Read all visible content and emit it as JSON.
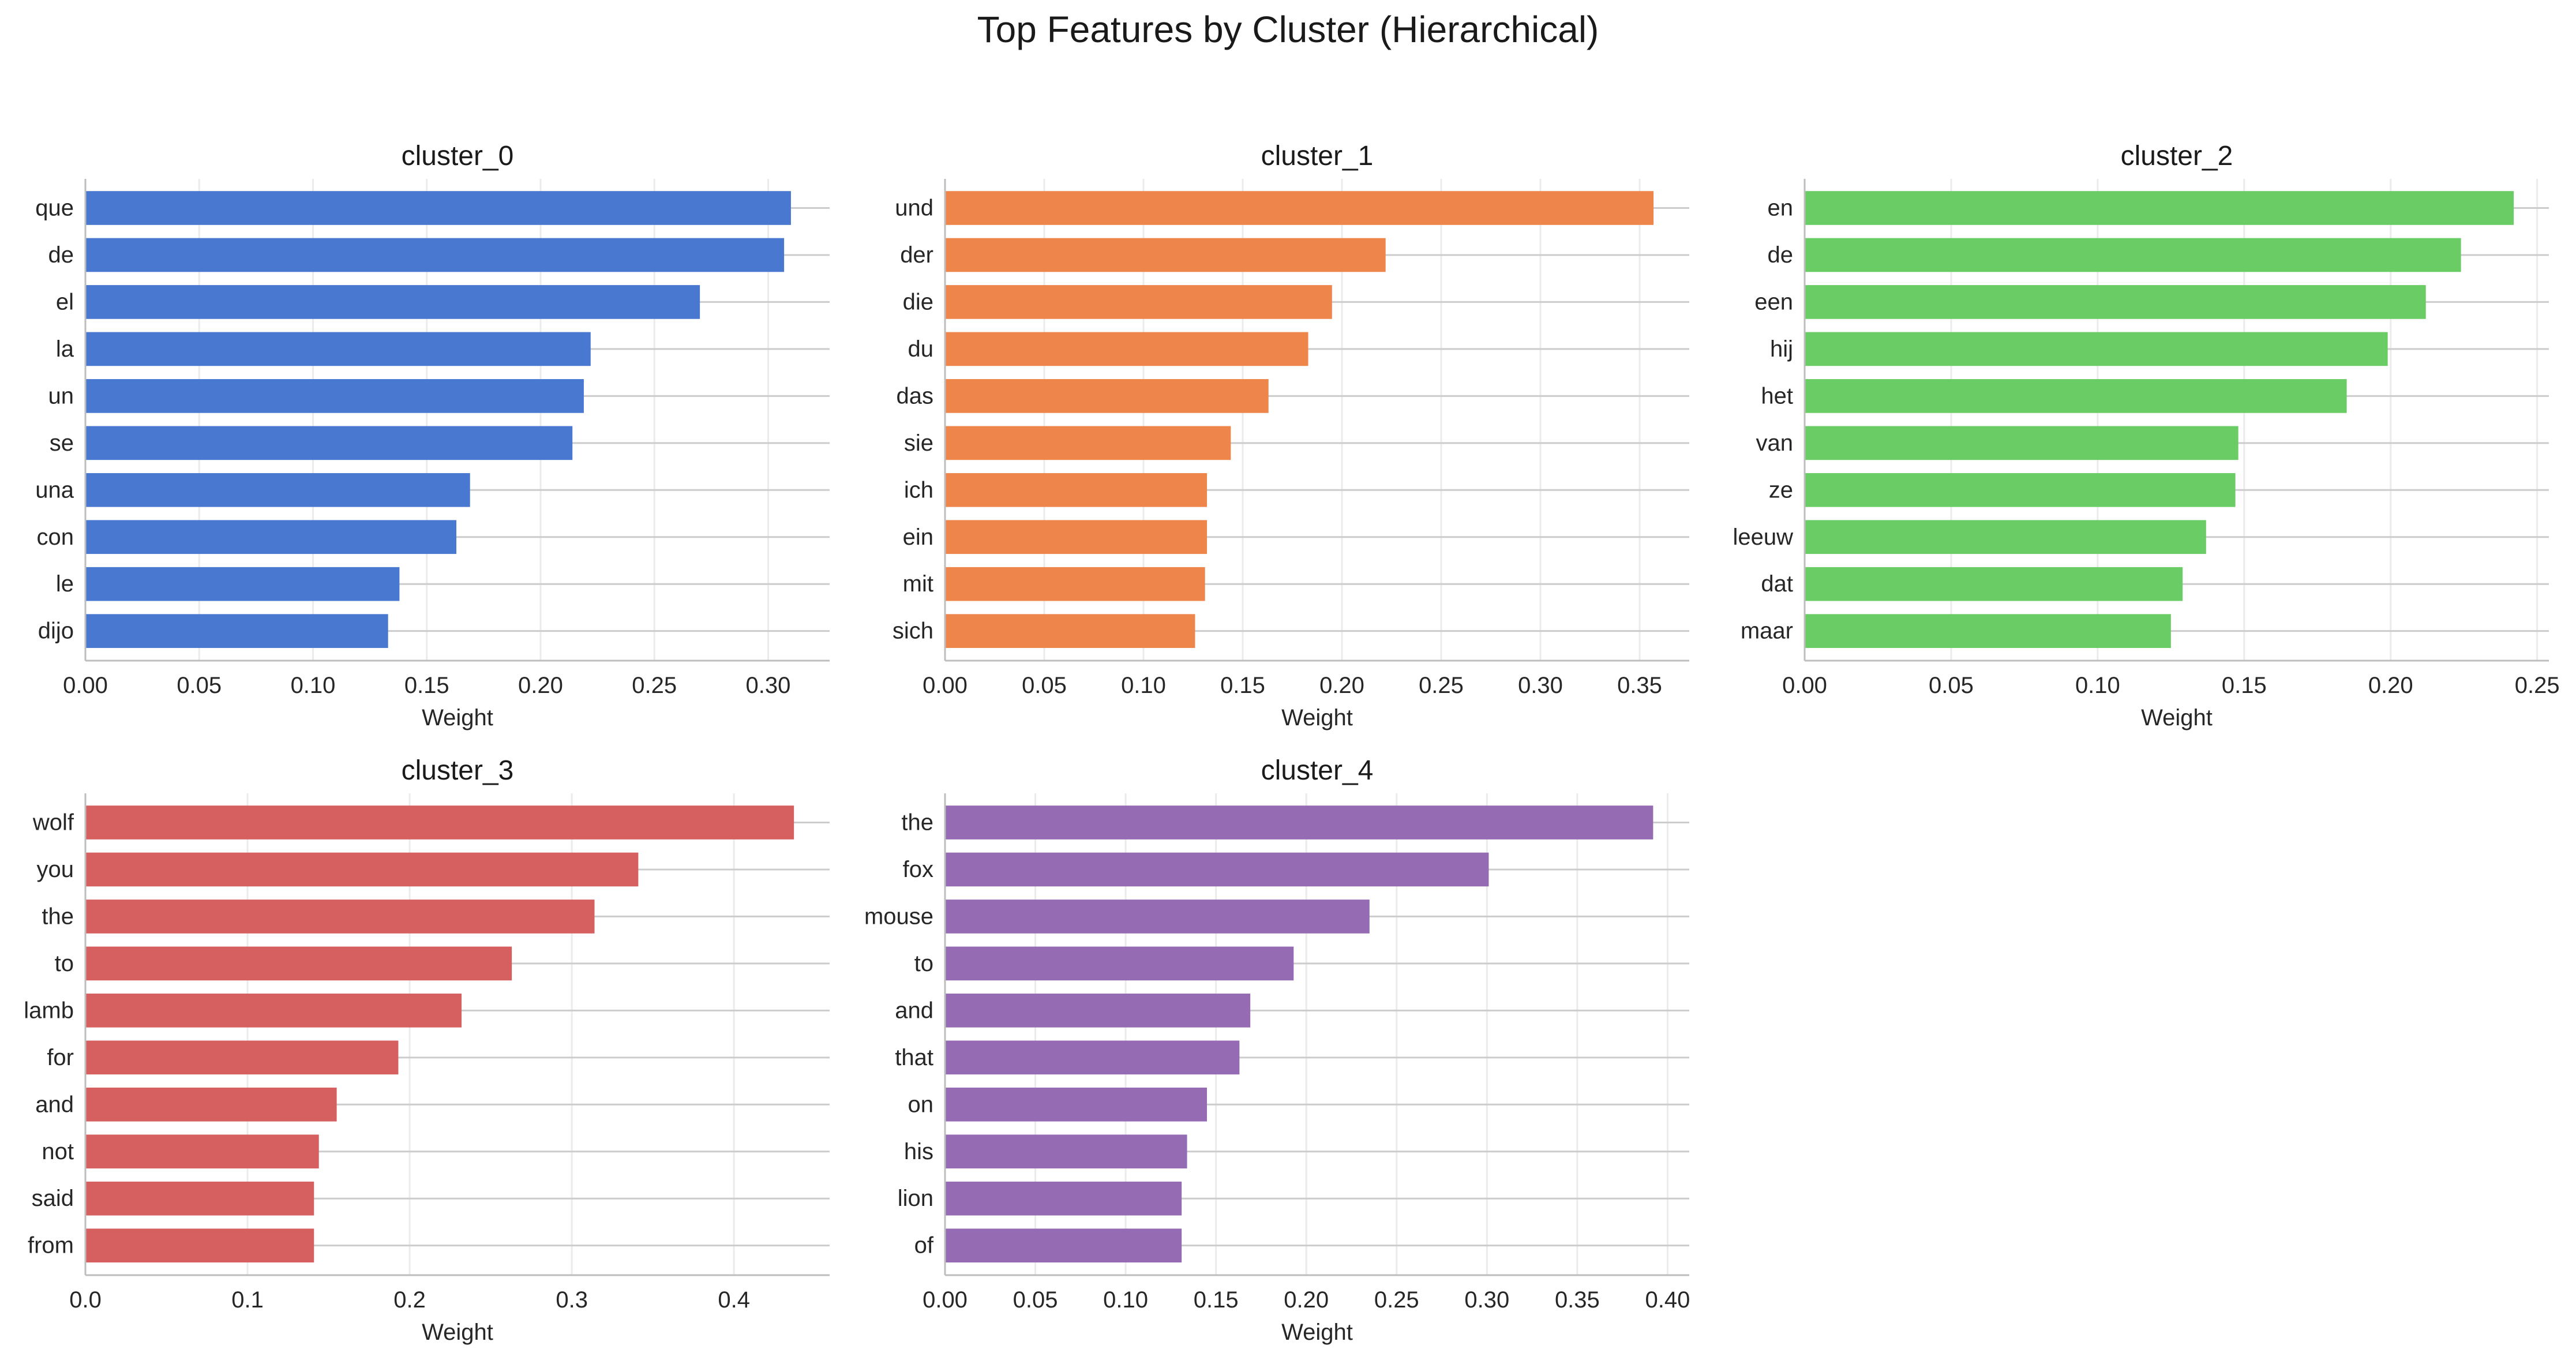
{
  "figure": {
    "title": "Top Features by Cluster (Hierarchical)"
  },
  "chart_data": [
    {
      "type": "bar",
      "orientation": "horizontal",
      "title": "cluster_0",
      "xlabel": "Weight",
      "ylabel": "",
      "color": "#4878d0",
      "categories": [
        "que",
        "de",
        "el",
        "la",
        "un",
        "se",
        "una",
        "con",
        "le",
        "dijo"
      ],
      "values": [
        0.31,
        0.307,
        0.27,
        0.222,
        0.219,
        0.214,
        0.169,
        0.163,
        0.138,
        0.133
      ],
      "xlim": [
        0,
        0.327
      ],
      "xticks": [
        0.0,
        0.05,
        0.1,
        0.15,
        0.2,
        0.25,
        0.3
      ],
      "xtick_labels": [
        "0.00",
        "0.05",
        "0.10",
        "0.15",
        "0.20",
        "0.25",
        "0.30"
      ]
    },
    {
      "type": "bar",
      "orientation": "horizontal",
      "title": "cluster_1",
      "xlabel": "Weight",
      "ylabel": "",
      "color": "#ee854a",
      "categories": [
        "und",
        "der",
        "die",
        "du",
        "das",
        "sie",
        "ich",
        "ein",
        "mit",
        "sich"
      ],
      "values": [
        0.357,
        0.222,
        0.195,
        0.183,
        0.163,
        0.144,
        0.132,
        0.132,
        0.131,
        0.126
      ],
      "xlim": [
        0,
        0.375
      ],
      "xticks": [
        0.0,
        0.05,
        0.1,
        0.15,
        0.2,
        0.25,
        0.3,
        0.35
      ],
      "xtick_labels": [
        "0.00",
        "0.05",
        "0.10",
        "0.15",
        "0.20",
        "0.25",
        "0.30",
        "0.35"
      ]
    },
    {
      "type": "bar",
      "orientation": "horizontal",
      "title": "cluster_2",
      "xlabel": "Weight",
      "ylabel": "",
      "color": "#6acc64",
      "categories": [
        "en",
        "de",
        "een",
        "hij",
        "het",
        "van",
        "ze",
        "leeuw",
        "dat",
        "maar"
      ],
      "values": [
        0.242,
        0.224,
        0.212,
        0.199,
        0.185,
        0.148,
        0.147,
        0.137,
        0.129,
        0.125
      ],
      "xlim": [
        0,
        0.254
      ],
      "xticks": [
        0.0,
        0.05,
        0.1,
        0.15,
        0.2,
        0.25
      ],
      "xtick_labels": [
        "0.00",
        "0.05",
        "0.10",
        "0.15",
        "0.20",
        "0.25"
      ]
    },
    {
      "type": "bar",
      "orientation": "horizontal",
      "title": "cluster_3",
      "xlabel": "Weight",
      "ylabel": "",
      "color": "#d65f5f",
      "categories": [
        "wolf",
        "you",
        "the",
        "to",
        "lamb",
        "for",
        "and",
        "not",
        "said",
        "from"
      ],
      "values": [
        0.437,
        0.341,
        0.314,
        0.263,
        0.232,
        0.193,
        0.155,
        0.144,
        0.141,
        0.141
      ],
      "xlim": [
        0,
        0.459
      ],
      "xticks": [
        0.0,
        0.1,
        0.2,
        0.3,
        0.4
      ],
      "xtick_labels": [
        "0.0",
        "0.1",
        "0.2",
        "0.3",
        "0.4"
      ]
    },
    {
      "type": "bar",
      "orientation": "horizontal",
      "title": "cluster_4",
      "xlabel": "Weight",
      "ylabel": "",
      "color": "#956cb4",
      "categories": [
        "the",
        "fox",
        "mouse",
        "to",
        "and",
        "that",
        "on",
        "his",
        "lion",
        "of"
      ],
      "values": [
        0.392,
        0.301,
        0.235,
        0.193,
        0.169,
        0.163,
        0.145,
        0.134,
        0.131,
        0.131
      ],
      "xlim": [
        0,
        0.412
      ],
      "xticks": [
        0.0,
        0.05,
        0.1,
        0.15,
        0.2,
        0.25,
        0.3,
        0.35,
        0.4
      ],
      "xtick_labels": [
        "0.00",
        "0.05",
        "0.10",
        "0.15",
        "0.20",
        "0.25",
        "0.30",
        "0.35",
        "0.40"
      ]
    }
  ]
}
